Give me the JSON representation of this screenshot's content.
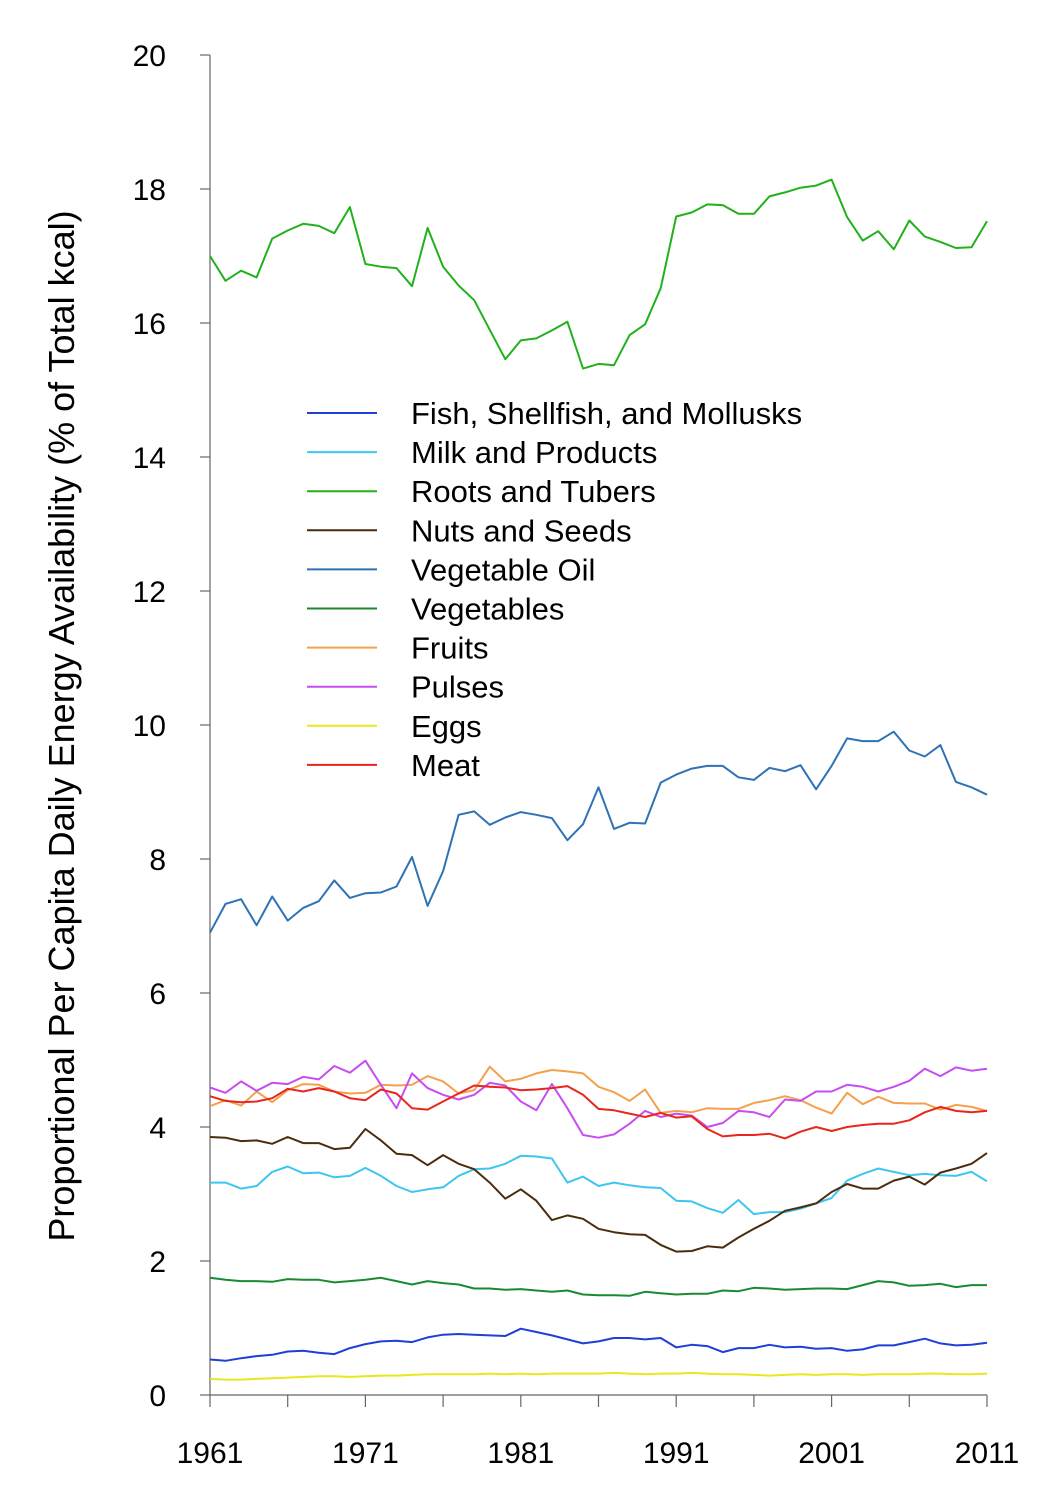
{
  "chart_data": {
    "type": "line",
    "title": "",
    "xlabel": "",
    "ylabel": "Proportional Per Capita Daily Energy Availability (% of Total kcal)",
    "xlim": [
      1961,
      2011
    ],
    "ylim": [
      0,
      20
    ],
    "x_ticks": [
      1961,
      1971,
      1981,
      1991,
      2001,
      2011
    ],
    "y_ticks": [
      0,
      2,
      4,
      6,
      8,
      10,
      12,
      14,
      16,
      18,
      20
    ],
    "grid": false,
    "legend_position": "center",
    "x": [
      1961,
      1962,
      1963,
      1964,
      1965,
      1966,
      1967,
      1968,
      1969,
      1970,
      1971,
      1972,
      1973,
      1974,
      1975,
      1976,
      1977,
      1978,
      1979,
      1980,
      1981,
      1982,
      1983,
      1984,
      1985,
      1986,
      1987,
      1988,
      1989,
      1990,
      1991,
      1992,
      1993,
      1994,
      1995,
      1996,
      1997,
      1998,
      1999,
      2000,
      2001,
      2002,
      2003,
      2004,
      2005,
      2006,
      2007,
      2008,
      2009,
      2010,
      2011
    ],
    "series": [
      {
        "name": "Fish, Shellfish, and Mollusks",
        "color": "#1f3fd6",
        "values": [
          0.53,
          0.51,
          0.55,
          0.58,
          0.6,
          0.65,
          0.66,
          0.63,
          0.61,
          0.7,
          0.76,
          0.8,
          0.81,
          0.79,
          0.86,
          0.9,
          0.91,
          0.9,
          0.89,
          0.88,
          0.99,
          0.94,
          0.89,
          0.83,
          0.77,
          0.8,
          0.85,
          0.85,
          0.83,
          0.85,
          0.71,
          0.75,
          0.73,
          0.64,
          0.7,
          0.7,
          0.75,
          0.71,
          0.72,
          0.69,
          0.7,
          0.66,
          0.68,
          0.74,
          0.74,
          0.79,
          0.84,
          0.77,
          0.74,
          0.75,
          0.78
        ]
      },
      {
        "name": "Milk and Products",
        "color": "#3ec6f0",
        "values": [
          3.17,
          3.17,
          3.08,
          3.12,
          3.33,
          3.41,
          3.31,
          3.32,
          3.25,
          3.27,
          3.39,
          3.27,
          3.12,
          3.03,
          3.07,
          3.1,
          3.27,
          3.37,
          3.38,
          3.45,
          3.57,
          3.56,
          3.53,
          3.17,
          3.26,
          3.12,
          3.17,
          3.13,
          3.1,
          3.09,
          2.9,
          2.89,
          2.79,
          2.72,
          2.91,
          2.7,
          2.73,
          2.73,
          2.78,
          2.86,
          2.94,
          3.2,
          3.3,
          3.38,
          3.33,
          3.28,
          3.3,
          3.28,
          3.27,
          3.33,
          3.19
        ]
      },
      {
        "name": "Roots and Tubers",
        "color": "#22b11c",
        "values": [
          17.0,
          16.63,
          16.78,
          16.68,
          17.26,
          17.38,
          17.48,
          17.45,
          17.34,
          17.73,
          16.88,
          16.84,
          16.82,
          16.55,
          17.42,
          16.84,
          16.56,
          16.34,
          15.9,
          15.46,
          15.74,
          15.77,
          15.89,
          16.02,
          15.32,
          15.39,
          15.37,
          15.82,
          15.98,
          16.52,
          17.59,
          17.65,
          17.77,
          17.76,
          17.63,
          17.63,
          17.89,
          17.95,
          18.02,
          18.05,
          18.14,
          17.58,
          17.23,
          17.37,
          17.1,
          17.53,
          17.29,
          17.21,
          17.12,
          17.13,
          17.52
        ]
      },
      {
        "name": "Nuts and Seeds",
        "color": "#4a2c0e",
        "values": [
          3.85,
          3.84,
          3.79,
          3.8,
          3.75,
          3.85,
          3.76,
          3.76,
          3.67,
          3.69,
          3.97,
          3.8,
          3.6,
          3.58,
          3.43,
          3.58,
          3.45,
          3.37,
          3.17,
          2.93,
          3.07,
          2.9,
          2.61,
          2.68,
          2.63,
          2.48,
          2.43,
          2.4,
          2.39,
          2.24,
          2.14,
          2.15,
          2.22,
          2.2,
          2.35,
          2.48,
          2.6,
          2.75,
          2.8,
          2.86,
          3.03,
          3.15,
          3.08,
          3.08,
          3.2,
          3.26,
          3.14,
          3.32,
          3.38,
          3.45,
          3.61
        ]
      },
      {
        "name": "Vegetable Oil",
        "color": "#2f72b5",
        "values": [
          6.9,
          7.33,
          7.4,
          7.01,
          7.44,
          7.08,
          7.27,
          7.37,
          7.68,
          7.42,
          7.49,
          7.5,
          7.59,
          8.03,
          7.3,
          7.82,
          8.66,
          8.71,
          8.51,
          8.62,
          8.7,
          8.66,
          8.61,
          8.28,
          8.52,
          9.07,
          8.45,
          8.54,
          8.53,
          9.14,
          9.26,
          9.35,
          9.39,
          9.39,
          9.22,
          9.18,
          9.36,
          9.31,
          9.4,
          9.04,
          9.39,
          9.8,
          9.76,
          9.76,
          9.9,
          9.62,
          9.53,
          9.7,
          9.15,
          9.07,
          8.96
        ]
      },
      {
        "name": "Vegetables",
        "color": "#1a8a32",
        "values": [
          1.75,
          1.72,
          1.7,
          1.7,
          1.69,
          1.73,
          1.72,
          1.72,
          1.68,
          1.7,
          1.72,
          1.75,
          1.7,
          1.65,
          1.7,
          1.67,
          1.65,
          1.59,
          1.59,
          1.57,
          1.58,
          1.56,
          1.54,
          1.56,
          1.5,
          1.49,
          1.49,
          1.48,
          1.54,
          1.52,
          1.5,
          1.51,
          1.51,
          1.56,
          1.55,
          1.6,
          1.59,
          1.57,
          1.58,
          1.59,
          1.59,
          1.58,
          1.64,
          1.7,
          1.68,
          1.63,
          1.64,
          1.66,
          1.61,
          1.64,
          1.64
        ]
      },
      {
        "name": "Fruits",
        "color": "#f5a04c",
        "values": [
          4.31,
          4.4,
          4.32,
          4.53,
          4.37,
          4.55,
          4.64,
          4.63,
          4.53,
          4.5,
          4.51,
          4.63,
          4.62,
          4.63,
          4.76,
          4.68,
          4.5,
          4.55,
          4.9,
          4.68,
          4.72,
          4.8,
          4.85,
          4.83,
          4.8,
          4.6,
          4.52,
          4.39,
          4.56,
          4.21,
          4.24,
          4.22,
          4.28,
          4.27,
          4.27,
          4.36,
          4.4,
          4.46,
          4.4,
          4.29,
          4.2,
          4.51,
          4.34,
          4.45,
          4.36,
          4.35,
          4.35,
          4.26,
          4.33,
          4.3,
          4.24
        ]
      },
      {
        "name": "Pulses",
        "color": "#c84df0",
        "values": [
          4.59,
          4.51,
          4.68,
          4.54,
          4.66,
          4.64,
          4.75,
          4.71,
          4.91,
          4.81,
          4.99,
          4.63,
          4.28,
          4.8,
          4.58,
          4.48,
          4.41,
          4.48,
          4.66,
          4.62,
          4.38,
          4.25,
          4.64,
          4.28,
          3.88,
          3.84,
          3.89,
          4.05,
          4.24,
          4.15,
          4.2,
          4.17,
          4.0,
          4.06,
          4.24,
          4.22,
          4.15,
          4.41,
          4.39,
          4.53,
          4.53,
          4.63,
          4.6,
          4.53,
          4.6,
          4.69,
          4.87,
          4.76,
          4.89,
          4.84,
          4.87
        ]
      },
      {
        "name": "Eggs",
        "color": "#e8e81c",
        "values": [
          0.24,
          0.23,
          0.23,
          0.24,
          0.25,
          0.26,
          0.27,
          0.28,
          0.28,
          0.27,
          0.28,
          0.29,
          0.29,
          0.3,
          0.31,
          0.31,
          0.31,
          0.31,
          0.32,
          0.31,
          0.32,
          0.31,
          0.32,
          0.32,
          0.32,
          0.32,
          0.33,
          0.32,
          0.31,
          0.32,
          0.32,
          0.33,
          0.32,
          0.31,
          0.31,
          0.3,
          0.29,
          0.3,
          0.31,
          0.3,
          0.31,
          0.31,
          0.3,
          0.31,
          0.31,
          0.31,
          0.32,
          0.32,
          0.31,
          0.31,
          0.32
        ]
      },
      {
        "name": "Meat",
        "color": "#e8261c",
        "values": [
          4.46,
          4.39,
          4.37,
          4.38,
          4.43,
          4.57,
          4.53,
          4.58,
          4.53,
          4.43,
          4.4,
          4.56,
          4.5,
          4.28,
          4.26,
          4.38,
          4.5,
          4.62,
          4.6,
          4.59,
          4.55,
          4.56,
          4.58,
          4.61,
          4.48,
          4.27,
          4.25,
          4.2,
          4.15,
          4.21,
          4.14,
          4.16,
          3.97,
          3.86,
          3.88,
          3.88,
          3.9,
          3.83,
          3.93,
          4.0,
          3.94,
          4.0,
          4.03,
          4.05,
          4.05,
          4.1,
          4.22,
          4.3,
          4.24,
          4.22,
          4.24
        ]
      }
    ]
  }
}
